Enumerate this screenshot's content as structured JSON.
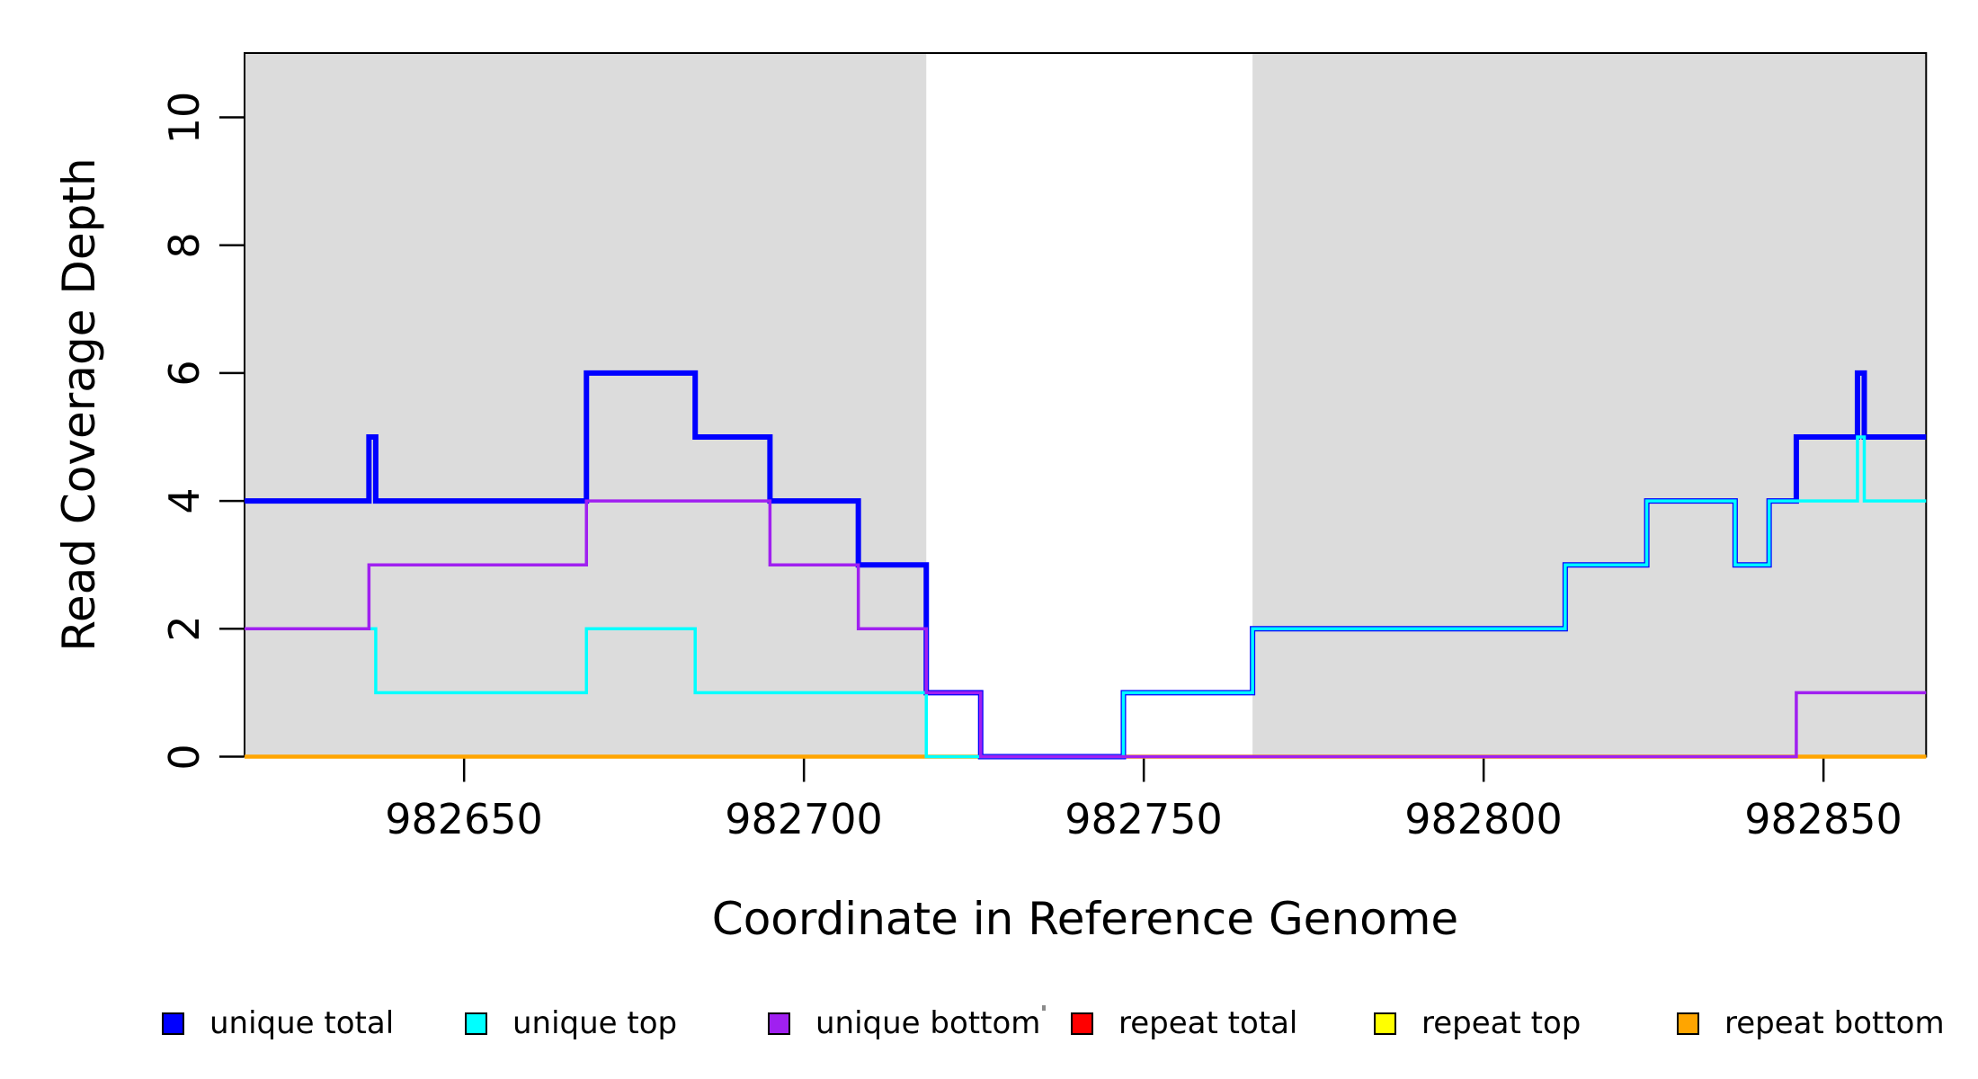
{
  "axes": {
    "x": {
      "title": "Coordinate in Reference Genome",
      "range": [
        982617.7,
        982865.1
      ],
      "ticks": [
        {
          "coord": 982650,
          "label": "982650"
        },
        {
          "coord": 982700,
          "label": "982700"
        },
        {
          "coord": 982750,
          "label": "982750"
        },
        {
          "coord": 982800,
          "label": "982800"
        },
        {
          "coord": 982850,
          "label": "982850"
        }
      ]
    },
    "y": {
      "title": "Read Coverage Depth",
      "range": [
        0,
        11
      ],
      "ticks": [
        {
          "value": 0,
          "label": "0"
        },
        {
          "value": 2,
          "label": "2"
        },
        {
          "value": 4,
          "label": "4"
        },
        {
          "value": 6,
          "label": "6"
        },
        {
          "value": 8,
          "label": "8"
        },
        {
          "value": 10,
          "label": "10"
        }
      ]
    }
  },
  "highlight_regions": [
    {
      "name": "left-flank-shading",
      "start": 982617.7,
      "end": 982718,
      "color": "#DCDCDC"
    },
    {
      "name": "right-flank-shading",
      "start": 982766,
      "end": 982865.1,
      "color": "#DCDCDC"
    }
  ],
  "chart_data": {
    "type": "line",
    "subtype": "step-coverage",
    "xlabel": "Coordinate in Reference Genome",
    "ylabel": "Read Coverage Depth",
    "xlim": [
      982617.7,
      982865.1
    ],
    "ylim": [
      0,
      11
    ],
    "grid": false,
    "legend_position": "bottom",
    "series": [
      {
        "name": "repeat total",
        "color": "#FF0000",
        "width": 3,
        "segments": [
          [
            982617.7,
            982865.1,
            0
          ]
        ]
      },
      {
        "name": "repeat top",
        "color": "#FFFF00",
        "width": 3,
        "segments": [
          [
            982617.7,
            982865.1,
            0
          ]
        ]
      },
      {
        "name": "repeat bottom",
        "color": "#FFA500",
        "width": 4.5,
        "segments": [
          [
            982617.7,
            982865.1,
            0
          ]
        ]
      },
      {
        "name": "unique total",
        "color": "#0000FF",
        "width": 6,
        "segments": [
          [
            982617.7,
            982636,
            4
          ],
          [
            982636,
            982637,
            5
          ],
          [
            982637,
            982668,
            4
          ],
          [
            982668,
            982684,
            6
          ],
          [
            982684,
            982695,
            5
          ],
          [
            982695,
            982708,
            4
          ],
          [
            982708,
            982718,
            3
          ],
          [
            982718,
            982726,
            1
          ],
          [
            982726,
            982747,
            0
          ],
          [
            982747,
            982766,
            1
          ],
          [
            982766,
            982812,
            2
          ],
          [
            982812,
            982824,
            3
          ],
          [
            982824,
            982837,
            4
          ],
          [
            982837,
            982842,
            3
          ],
          [
            982842,
            982846,
            4
          ],
          [
            982846,
            982855,
            5
          ],
          [
            982855,
            982856,
            6
          ],
          [
            982856,
            982865.1,
            5
          ]
        ]
      },
      {
        "name": "unique top",
        "color": "#00FFFF",
        "width": 3.5,
        "segments": [
          [
            982617.7,
            982637,
            2
          ],
          [
            982637,
            982668,
            1
          ],
          [
            982668,
            982684,
            2
          ],
          [
            982684,
            982718,
            1
          ],
          [
            982718,
            982747,
            0
          ],
          [
            982747,
            982766,
            1
          ],
          [
            982766,
            982812,
            2
          ],
          [
            982812,
            982824,
            3
          ],
          [
            982824,
            982837,
            4
          ],
          [
            982837,
            982842,
            3
          ],
          [
            982842,
            982855,
            4
          ],
          [
            982855,
            982856,
            5
          ],
          [
            982856,
            982865.1,
            4
          ]
        ]
      },
      {
        "name": "unique bottom",
        "color": "#A020F0",
        "width": 3.5,
        "segments": [
          [
            982617.7,
            982636,
            2
          ],
          [
            982636,
            982668,
            3
          ],
          [
            982668,
            982695,
            4
          ],
          [
            982695,
            982708,
            3
          ],
          [
            982708,
            982718,
            2
          ],
          [
            982718,
            982726,
            1
          ],
          [
            982726,
            982846,
            0
          ],
          [
            982846,
            982865.1,
            1
          ]
        ]
      }
    ]
  },
  "legend": [
    {
      "label": "unique total",
      "color": "#0000FF"
    },
    {
      "label": "unique top",
      "color": "#00FFFF"
    },
    {
      "label": "unique bottom",
      "color": "#A020F0"
    },
    {
      "label": "repeat total",
      "color": "#FF0000"
    },
    {
      "label": "repeat top",
      "color": "#FFFF00"
    },
    {
      "label": "repeat bottom",
      "color": "#FFA500"
    }
  ]
}
